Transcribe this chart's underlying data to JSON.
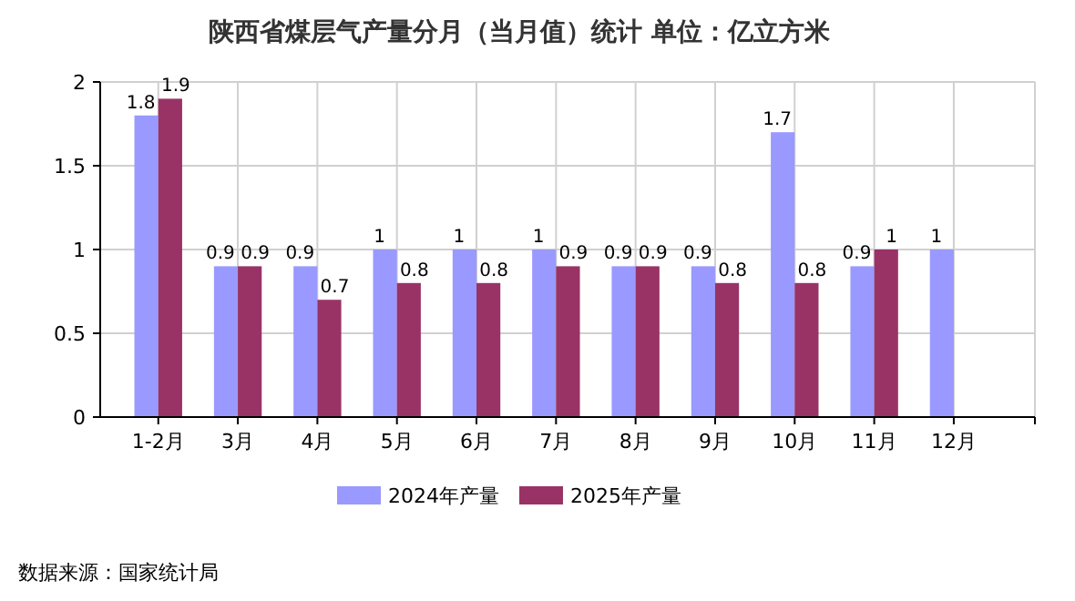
{
  "chart_data": {
    "type": "bar",
    "title": "陕西省煤层气产量分月（当月值）统计 单位：亿立方米",
    "categories": [
      "1-2月",
      "3月",
      "4月",
      "5月",
      "6月",
      "7月",
      "8月",
      "9月",
      "10月",
      "11月",
      "12月"
    ],
    "series": [
      {
        "name": "2024年产量",
        "color": "#9999ff",
        "values": [
          1.8,
          0.9,
          0.9,
          1,
          1,
          1,
          0.9,
          0.9,
          1.7,
          0.9,
          1
        ]
      },
      {
        "name": "2025年产量",
        "color": "#993366",
        "values": [
          1.9,
          0.9,
          0.7,
          0.8,
          0.8,
          0.9,
          0.9,
          0.8,
          0.8,
          1,
          null
        ]
      }
    ],
    "ylim": [
      0,
      2
    ],
    "yticks": [
      0,
      {
        "value": 0.5,
        "label": "0.5"
      },
      1,
      1.5,
      2
    ],
    "grid": true,
    "legend": "bottom",
    "data_labels": true,
    "annotations": [
      "数据来源：国家统计局"
    ]
  }
}
